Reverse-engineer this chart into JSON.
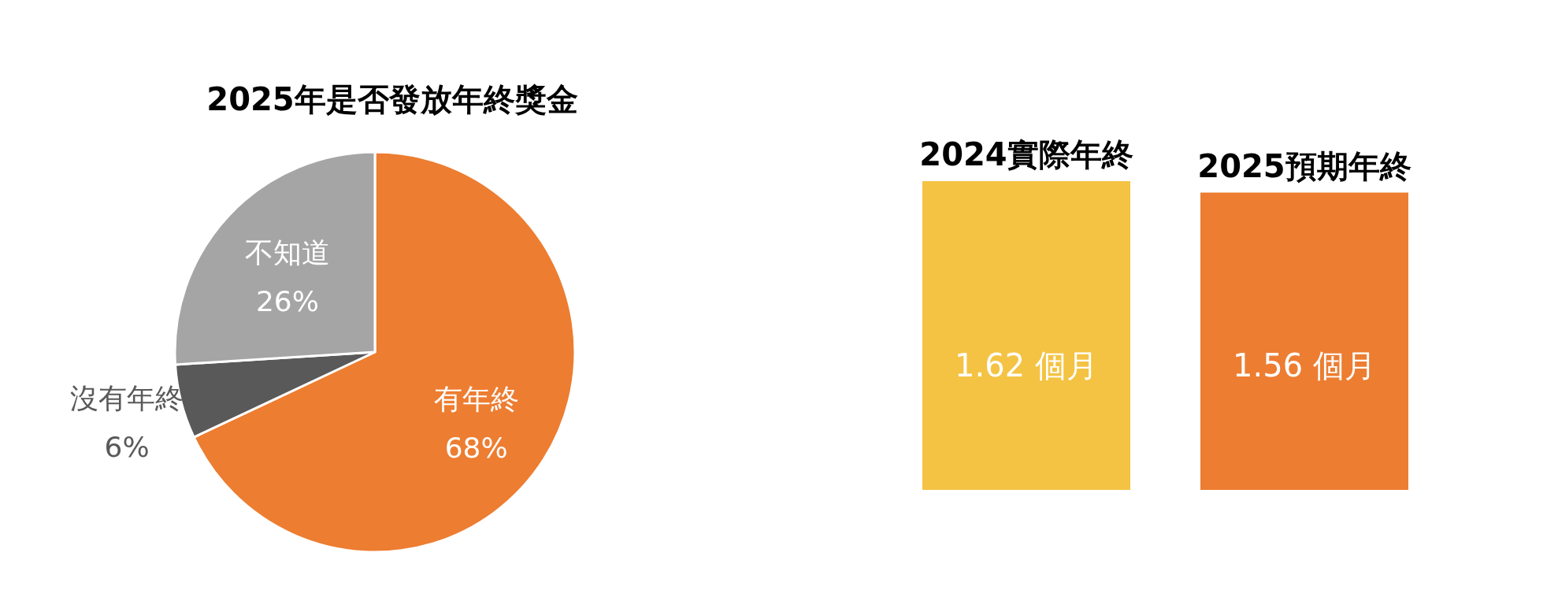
{
  "chart_data": [
    {
      "type": "pie",
      "title": "2025年是否發放年終獎金",
      "categories": [
        "有年終",
        "沒有年終",
        "不知道"
      ],
      "values": [
        68,
        6,
        26
      ],
      "colors": [
        "#ed7d31",
        "#595959",
        "#a5a5a5"
      ],
      "value_labels": [
        "68%",
        "6%",
        "26%"
      ]
    },
    {
      "type": "bar",
      "categories": [
        "2024實際年終",
        "2025預期年終"
      ],
      "values": [
        1.62,
        1.56
      ],
      "colors": [
        "#f4c343",
        "#ed7d31"
      ],
      "value_labels": [
        "1.62 個月",
        "1.56 個月"
      ]
    }
  ]
}
